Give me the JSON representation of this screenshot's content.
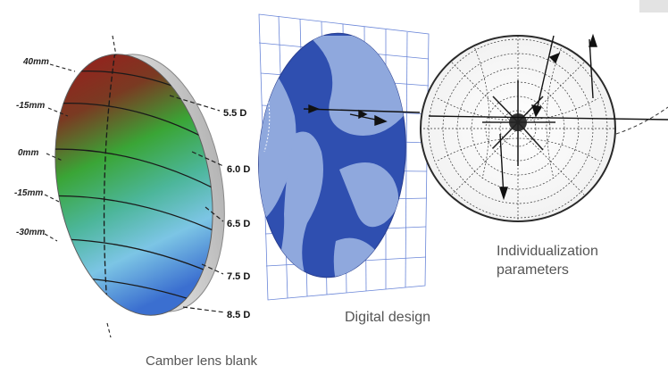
{
  "lens_blank": {
    "caption": "Camber lens blank",
    "mm_labels": [
      "40mm",
      "-15mm",
      "0mm",
      "-15mm",
      "-30mm"
    ],
    "diopters": [
      "5.5 D",
      "6.0 D",
      "6.5 D",
      "7.5 D",
      "8.5 D"
    ],
    "colors": {
      "top": "#9b1c1c",
      "middle": "#3aa536",
      "bottom": "#3b6fd0"
    }
  },
  "digital_design": {
    "caption": "Digital design",
    "colors": {
      "dark": "#2f4fb0",
      "light": "#8fa8dd",
      "grid": "#6a86d8"
    }
  },
  "individualization": {
    "caption_line1": "Individualization",
    "caption_line2": "parameters"
  }
}
